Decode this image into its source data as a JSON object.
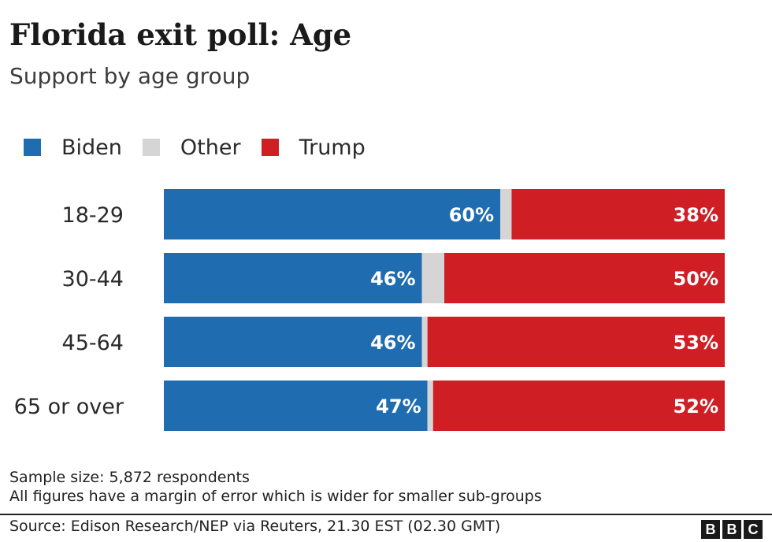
{
  "header": {
    "title": "Florida exit poll: Age",
    "subtitle": "Support by age group"
  },
  "legend": [
    {
      "label": "Biden",
      "color": "#1f6cb0"
    },
    {
      "label": "Other",
      "color": "#d5d5d5"
    },
    {
      "label": "Trump",
      "color": "#cf1e24"
    }
  ],
  "chart_data": {
    "type": "bar",
    "orientation": "horizontal",
    "stacked": true,
    "title": "Florida exit poll: Age",
    "subtitle": "Support by age group",
    "categories": [
      "18-29",
      "30-44",
      "45-64",
      "65 or over"
    ],
    "series": [
      {
        "name": "Biden",
        "color": "#1f6cb0",
        "values": [
          60,
          46,
          46,
          47
        ],
        "labels": [
          "60%",
          "46%",
          "46%",
          "47%"
        ]
      },
      {
        "name": "Other",
        "color": "#d5d5d5",
        "values": [
          2,
          4,
          1,
          1
        ],
        "labels": [
          "",
          "",
          "",
          ""
        ]
      },
      {
        "name": "Trump",
        "color": "#cf1e24",
        "values": [
          38,
          50,
          53,
          52
        ],
        "labels": [
          "38%",
          "50%",
          "53%",
          "52%"
        ]
      }
    ],
    "xlim": [
      0,
      100
    ],
    "unit": "%",
    "legend_position": "top-left"
  },
  "footer": {
    "notes": [
      "Sample size: 5,872 respondents",
      "All figures have a margin of error which is wider for smaller sub-groups"
    ],
    "source": "Source: Edison Research/NEP via Reuters, 21.30 EST (02.30 GMT)",
    "logo_letters": [
      "B",
      "B",
      "C"
    ]
  }
}
